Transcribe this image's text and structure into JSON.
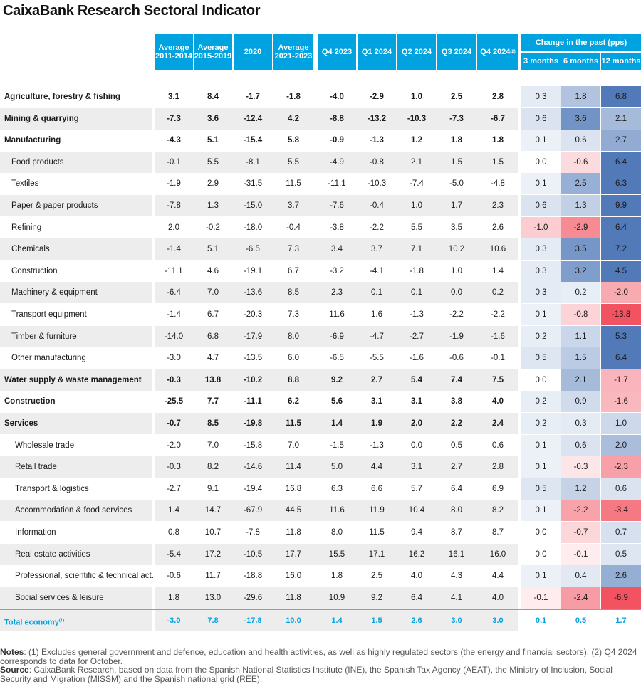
{
  "title": "CaixaBank Research Sectoral Indicator",
  "header": {
    "columns": [
      "Average 2011-2014",
      "Average 2015-2019",
      "2020",
      "Average 2021-2023",
      "Q4 2023",
      "Q1 2024",
      "Q2 2024",
      "Q3 2024",
      "Q4 2024"
    ],
    "q4_2024_sup": "(2)",
    "change_title": "Change in the past (pps)",
    "change_columns": [
      "3 months",
      "6 months",
      "12 months"
    ]
  },
  "rows": [
    {
      "label": "Agriculture, forestry & fishing",
      "level": 0,
      "bold": true,
      "shade": false,
      "values": [
        "3.1",
        "8.4",
        "-1.7",
        "-1.8",
        "-4.0",
        "-2.9",
        "1.0",
        "2.5",
        "2.8"
      ],
      "changes": [
        "0.3",
        "1.8",
        "6.8"
      ]
    },
    {
      "label": "Mining & quarrying",
      "level": 0,
      "bold": true,
      "shade": true,
      "values": [
        "-7.3",
        "3.6",
        "-12.4",
        "4.2",
        "-8.8",
        "-13.2",
        "-10.3",
        "-7.3",
        "-6.7"
      ],
      "changes": [
        "0.6",
        "3.6",
        "2.1"
      ]
    },
    {
      "label": "Manufacturing",
      "level": 0,
      "bold": true,
      "shade": false,
      "values": [
        "-4.3",
        "5.1",
        "-15.4",
        "5.8",
        "-0.9",
        "-1.3",
        "1.2",
        "1.8",
        "1.8"
      ],
      "changes": [
        "0.1",
        "0.6",
        "2.7"
      ]
    },
    {
      "label": "Food products",
      "level": 1,
      "bold": false,
      "shade": true,
      "values": [
        "-0.1",
        "5.5",
        "-8.1",
        "5.5",
        "-4.9",
        "-0.8",
        "2.1",
        "1.5",
        "1.5"
      ],
      "changes": [
        "0.0",
        "-0.6",
        "6.4"
      ]
    },
    {
      "label": "Textiles",
      "level": 1,
      "bold": false,
      "shade": false,
      "values": [
        "-1.9",
        "2.9",
        "-31.5",
        "11.5",
        "-11.1",
        "-10.3",
        "-7.4",
        "-5.0",
        "-4.8"
      ],
      "changes": [
        "0.1",
        "2.5",
        "6.3"
      ]
    },
    {
      "label": "Paper & paper products",
      "level": 1,
      "bold": false,
      "shade": true,
      "values": [
        "-7.8",
        "1.3",
        "-15.0",
        "3.7",
        "-7.6",
        "-0.4",
        "1.0",
        "1.7",
        "2.3"
      ],
      "changes": [
        "0.6",
        "1.3",
        "9.9"
      ]
    },
    {
      "label": "Refining",
      "level": 1,
      "bold": false,
      "shade": false,
      "values": [
        "2.0",
        "-0.2",
        "-18.0",
        "-0.4",
        "-3.8",
        "-2.2",
        "5.5",
        "3.5",
        "2.6"
      ],
      "changes": [
        "-1.0",
        "-2.9",
        "6.4"
      ]
    },
    {
      "label": "Chemicals",
      "level": 1,
      "bold": false,
      "shade": true,
      "values": [
        "-1.4",
        "5.1",
        "-6.5",
        "7.3",
        "3.4",
        "3.7",
        "7.1",
        "10.2",
        "10.6"
      ],
      "changes": [
        "0.3",
        "3.5",
        "7.2"
      ]
    },
    {
      "label": "Construction",
      "level": 1,
      "bold": false,
      "shade": false,
      "values": [
        "-11.1",
        "4.6",
        "-19.1",
        "6.7",
        "-3.2",
        "-4.1",
        "-1.8",
        "1.0",
        "1.4"
      ],
      "changes": [
        "0.3",
        "3.2",
        "4.5"
      ]
    },
    {
      "label": "Machinery & equipment",
      "level": 1,
      "bold": false,
      "shade": true,
      "values": [
        "-6.4",
        "7.0",
        "-13.6",
        "8.5",
        "2.3",
        "0.1",
        "0.1",
        "0.0",
        "0.2"
      ],
      "changes": [
        "0.3",
        "0.2",
        "-2.0"
      ]
    },
    {
      "label": "Transport equipment",
      "level": 1,
      "bold": false,
      "shade": false,
      "values": [
        "-1.4",
        "6.7",
        "-20.3",
        "7.3",
        "11.6",
        "1.6",
        "-1.3",
        "-2.2",
        "-2.2"
      ],
      "changes": [
        "0.1",
        "-0.8",
        "-13.8"
      ]
    },
    {
      "label": "Timber & furniture",
      "level": 1,
      "bold": false,
      "shade": true,
      "values": [
        "-14.0",
        "6.8",
        "-17.9",
        "8.0",
        "-6.9",
        "-4.7",
        "-2.7",
        "-1.9",
        "-1.6"
      ],
      "changes": [
        "0.2",
        "1.1",
        "5.3"
      ]
    },
    {
      "label": "Other manufacturing",
      "level": 1,
      "bold": false,
      "shade": false,
      "values": [
        "-3.0",
        "4.7",
        "-13.5",
        "6.0",
        "-6.5",
        "-5.5",
        "-1.6",
        "-0.6",
        "-0.1"
      ],
      "changes": [
        "0.5",
        "1.5",
        "6.4"
      ]
    },
    {
      "label": "Water supply & waste management",
      "level": 0,
      "bold": true,
      "shade": true,
      "values": [
        "-0.3",
        "13.8",
        "-10.2",
        "8.8",
        "9.2",
        "2.7",
        "5.4",
        "7.4",
        "7.5"
      ],
      "changes": [
        "0.0",
        "2.1",
        "-1.7"
      ]
    },
    {
      "label": "Construction",
      "level": 0,
      "bold": true,
      "shade": false,
      "values": [
        "-25.5",
        "7.7",
        "-11.1",
        "6.2",
        "5.6",
        "3.1",
        "3.1",
        "3.8",
        "4.0"
      ],
      "changes": [
        "0.2",
        "0.9",
        "-1.6"
      ]
    },
    {
      "label": "Services",
      "level": 0,
      "bold": true,
      "shade": true,
      "values": [
        "-0.7",
        "8.5",
        "-19.8",
        "11.5",
        "1.4",
        "1.9",
        "2.0",
        "2.2",
        "2.4"
      ],
      "changes": [
        "0.2",
        "0.3",
        "1.0"
      ]
    },
    {
      "label": "Wholesale trade",
      "level": 2,
      "bold": false,
      "shade": false,
      "values": [
        "-2.0",
        "7.0",
        "-15.8",
        "7.0",
        "-1.5",
        "-1.3",
        "0.0",
        "0.5",
        "0.6"
      ],
      "changes": [
        "0.1",
        "0.6",
        "2.0"
      ]
    },
    {
      "label": "Retail trade",
      "level": 2,
      "bold": false,
      "shade": true,
      "values": [
        "-0.3",
        "8.2",
        "-14.6",
        "11.4",
        "5.0",
        "4.4",
        "3.1",
        "2.7",
        "2.8"
      ],
      "changes": [
        "0.1",
        "-0.3",
        "-2.3"
      ]
    },
    {
      "label": "Transport & logistics",
      "level": 2,
      "bold": false,
      "shade": false,
      "values": [
        "-2.7",
        "9.1",
        "-19.4",
        "16.8",
        "6.3",
        "6.6",
        "5.7",
        "6.4",
        "6.9"
      ],
      "changes": [
        "0.5",
        "1.2",
        "0.6"
      ]
    },
    {
      "label": "Accommodation & food services",
      "level": 2,
      "bold": false,
      "shade": true,
      "values": [
        "1.4",
        "14.7",
        "-67.9",
        "44.5",
        "11.6",
        "11.9",
        "10.4",
        "8.0",
        "8.2"
      ],
      "changes": [
        "0.1",
        "-2.2",
        "-3.4"
      ]
    },
    {
      "label": "Information",
      "level": 2,
      "bold": false,
      "shade": false,
      "values": [
        "0.8",
        "10.7",
        "-7.8",
        "11.8",
        "8.0",
        "11.5",
        "9.4",
        "8.7",
        "8.7"
      ],
      "changes": [
        "0.0",
        "-0.7",
        "0.7"
      ]
    },
    {
      "label": "Real estate activities",
      "level": 2,
      "bold": false,
      "shade": true,
      "values": [
        "-5.4",
        "17.2",
        "-10.5",
        "17.7",
        "15.5",
        "17.1",
        "16.2",
        "16.1",
        "16.0"
      ],
      "changes": [
        "0.0",
        "-0.1",
        "0.5"
      ]
    },
    {
      "label": "Professional, scientific & technical act.",
      "level": 2,
      "bold": false,
      "shade": false,
      "values": [
        "-0.6",
        "11.7",
        "-18.8",
        "16.0",
        "1.8",
        "2.5",
        "4.0",
        "4.3",
        "4.4"
      ],
      "changes": [
        "0.1",
        "0.4",
        "2.6"
      ]
    },
    {
      "label": "Social services & leisure",
      "level": 2,
      "bold": false,
      "shade": true,
      "values": [
        "1.8",
        "13.0",
        "-29.6",
        "11.8",
        "10.9",
        "9.2",
        "6.4",
        "4.1",
        "4.0"
      ],
      "changes": [
        "-0.1",
        "-2.4",
        "-6.9"
      ]
    }
  ],
  "total": {
    "label": "Total economy",
    "sup": "(1)",
    "values": [
      "-3.0",
      "7.8",
      "-17.8",
      "10.0",
      "1.4",
      "1.5",
      "2.6",
      "3.0",
      "3.0"
    ],
    "changes": [
      "0.1",
      "0.5",
      "1.7"
    ]
  },
  "notes": {
    "notes_label": "Notes",
    "notes_text": ": (1) Excludes general government and defence, education and health activities, as well as highly regulated sectors (the energy and financial sectors). (2) Q4 2024 corresponds to data for October.",
    "source_label": "Source",
    "source_text": ": CaixaBank Research, based on data from the Spanish National Statistics Institute (INE), the Spanish Tax Agency (AEAT), the Ministry of Inclusion, Social Security and Migration (MISSM) and the Spanish national grid (REE)."
  },
  "colors": {
    "header": "#00a3e0",
    "positive": "#3f6cb0",
    "negative": "#f0404f",
    "shade": "#ededed",
    "total_text": "#00a3e0"
  }
}
